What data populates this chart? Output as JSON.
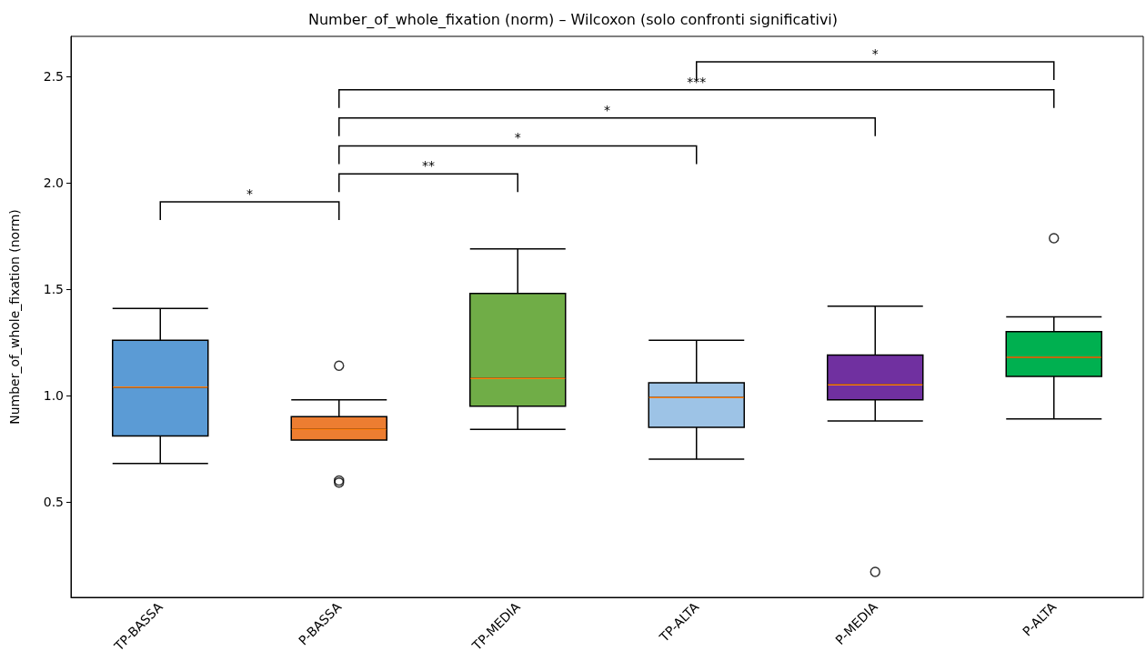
{
  "chart_data": {
    "type": "box",
    "title": "Number_of_whole_fixation (norm) – Wilcoxon (solo confronti significativi)",
    "ylabel": "Number_of_whole_fixation (norm)",
    "categories": [
      "TP-BASSA",
      "P-BASSA",
      "TP-MEDIA",
      "TP-ALTA",
      "P-MEDIA",
      "P-ALTA"
    ],
    "colors": [
      "#5b9bd5",
      "#ed7d31",
      "#70ad47",
      "#9dc3e6",
      "#7030a0",
      "#00b050"
    ],
    "boxes": [
      {
        "low": 0.68,
        "q1": 0.81,
        "median": 1.04,
        "q3": 1.26,
        "high": 1.41
      },
      {
        "low": 0.79,
        "q1": 0.79,
        "median": 0.84,
        "q3": 0.9,
        "high": 0.98,
        "outliers": [
          1.14,
          0.6,
          0.59
        ]
      },
      {
        "low": 0.84,
        "q1": 0.95,
        "median": 1.08,
        "q3": 1.48,
        "high": 1.69
      },
      {
        "low": 0.7,
        "q1": 0.85,
        "median": 0.99,
        "q3": 1.06,
        "high": 1.26
      },
      {
        "low": 0.88,
        "q1": 0.98,
        "median": 1.05,
        "q3": 1.19,
        "high": 1.42,
        "outliers": [
          0.17
        ]
      },
      {
        "low": 0.89,
        "q1": 1.09,
        "median": 1.18,
        "q3": 1.3,
        "high": 1.37,
        "outliers": [
          1.74
        ]
      }
    ],
    "ylim": [
      0.05,
      2.69
    ],
    "yticks": [
      0.5,
      {
        "value": 1,
        "label": "1.0"
      },
      1.5,
      {
        "value": 2,
        "label": "2.0"
      },
      2.5
    ],
    "grid": false,
    "annotations": [
      "*",
      "**",
      "*",
      "*",
      "***",
      "*"
    ]
  }
}
